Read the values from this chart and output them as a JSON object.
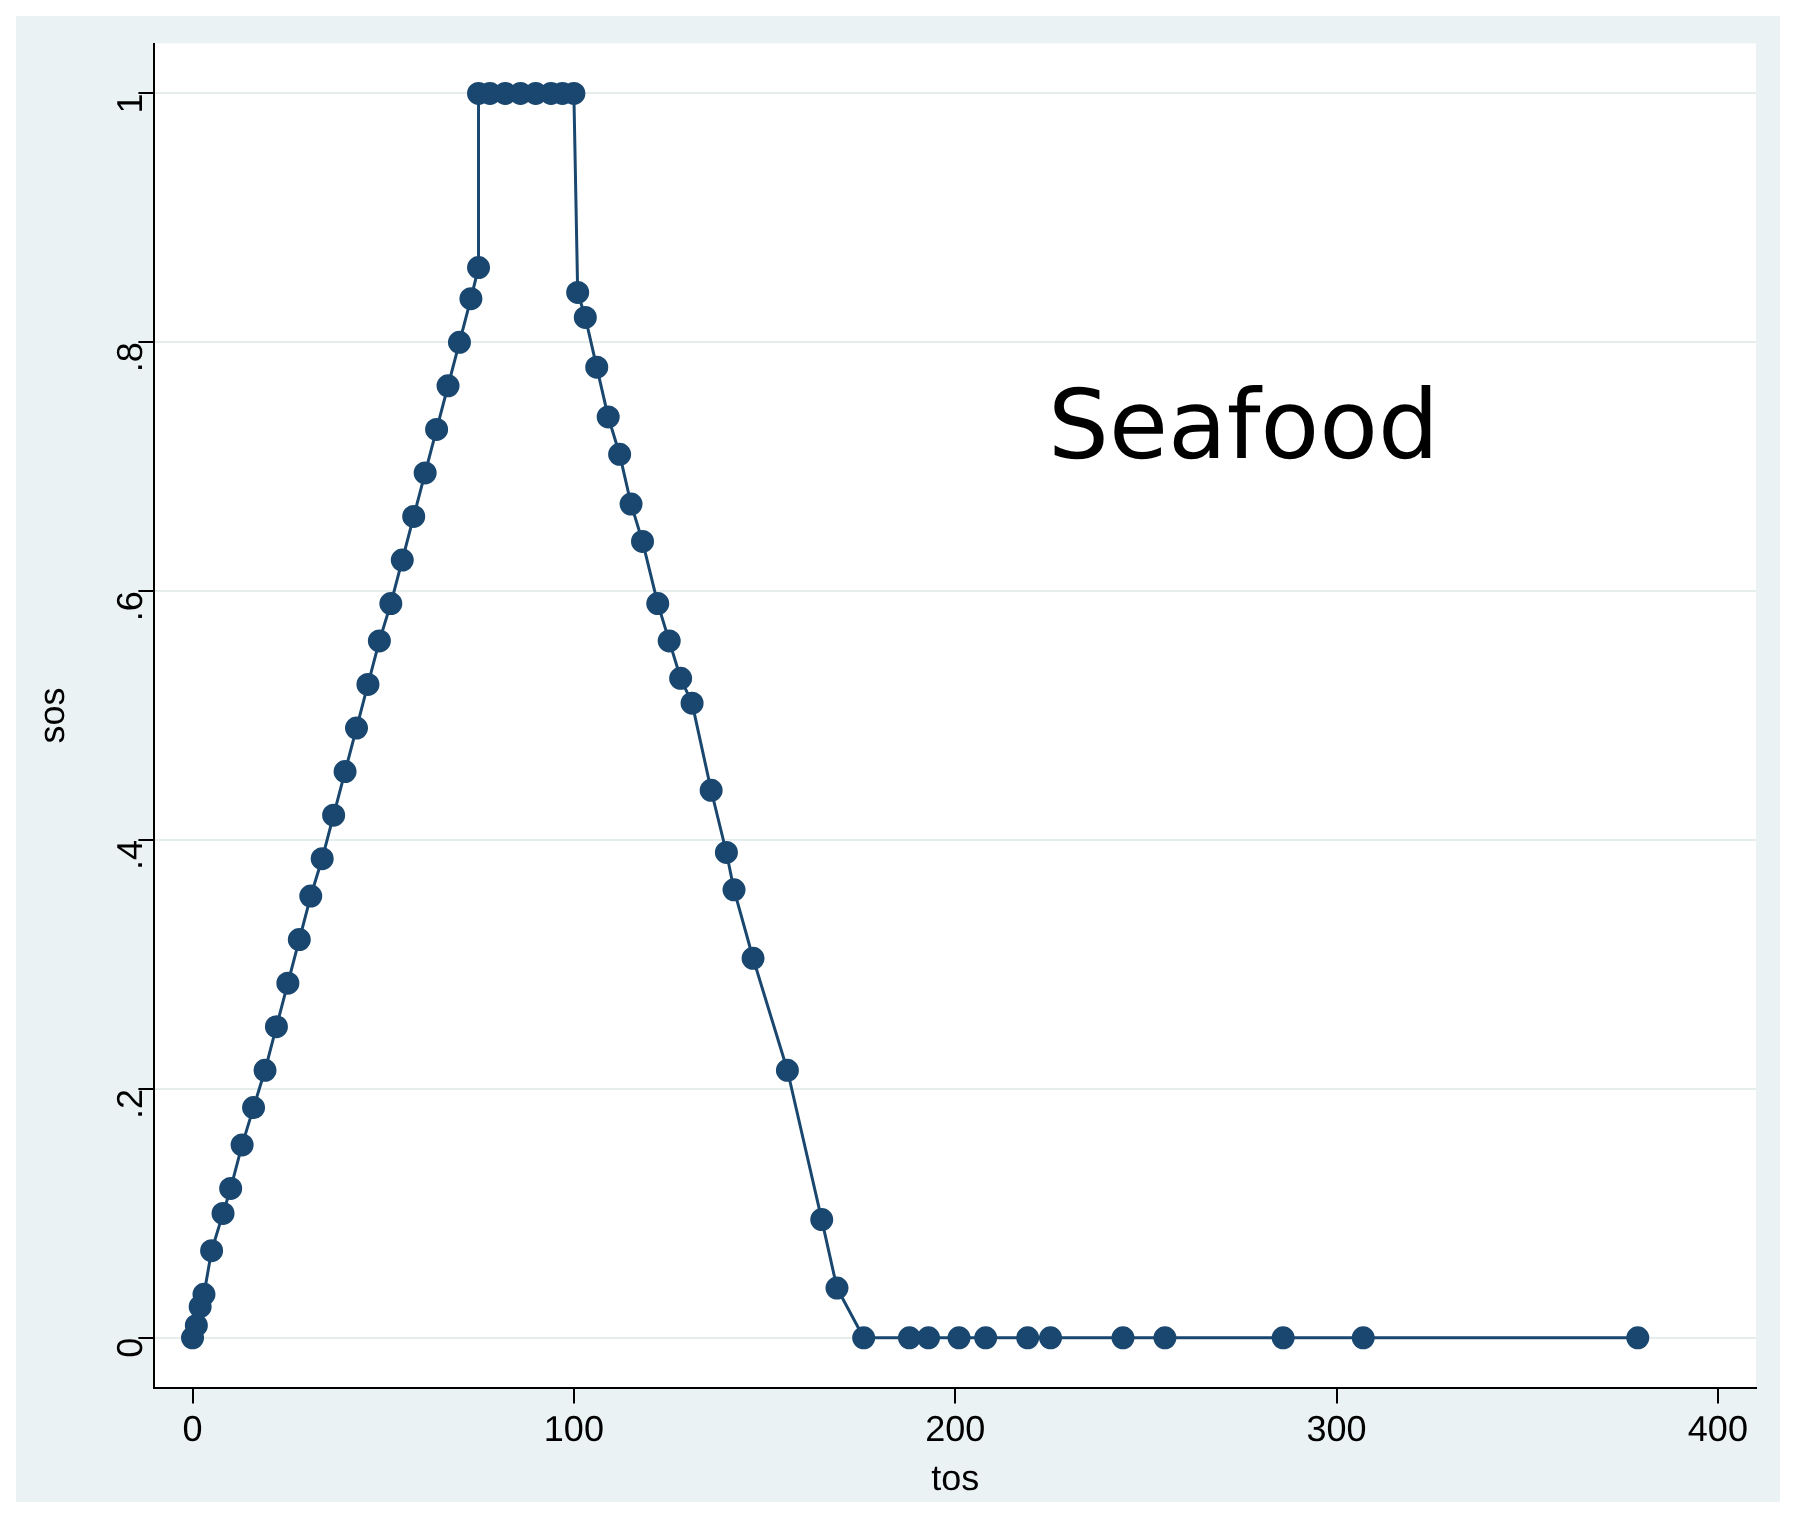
{
  "chart_data": {
    "type": "line",
    "xlabel": "tos",
    "ylabel": "sos",
    "annotations": [
      "Seafood"
    ],
    "x": [
      0,
      1,
      2,
      3,
      5,
      8,
      10,
      13,
      16,
      19,
      22,
      25,
      28,
      31,
      34,
      37,
      40,
      43,
      46,
      49,
      52,
      55,
      58,
      61,
      64,
      67,
      70,
      73,
      75,
      75,
      78,
      82,
      86,
      90,
      94,
      97,
      100,
      101,
      103,
      106,
      109,
      112,
      115,
      118,
      122,
      125,
      128,
      131,
      136,
      140,
      142,
      147,
      156,
      165,
      169,
      176,
      188,
      193,
      201,
      208,
      219,
      225,
      244,
      255,
      286,
      307,
      379
    ],
    "series": [
      {
        "color": "#1a476f",
        "values": [
          0,
          0.01,
          0.025,
          0.035,
          0.07,
          0.1,
          0.12,
          0.155,
          0.185,
          0.215,
          0.25,
          0.285,
          0.32,
          0.355,
          0.385,
          0.42,
          0.455,
          0.49,
          0.525,
          0.56,
          0.59,
          0.625,
          0.66,
          0.695,
          0.73,
          0.765,
          0.8,
          0.835,
          0.86,
          1,
          1,
          1,
          1,
          1,
          1,
          1,
          1,
          0.84,
          0.82,
          0.78,
          0.74,
          0.71,
          0.67,
          0.64,
          0.59,
          0.56,
          0.53,
          0.51,
          0.44,
          0.39,
          0.36,
          0.305,
          0.215,
          0.095,
          0.04,
          0,
          0,
          0,
          0,
          0,
          0,
          0,
          0,
          0,
          0,
          0,
          0
        ]
      }
    ],
    "xlim": [
      -10,
      410
    ],
    "xticks": [
      0,
      100,
      200,
      300,
      400
    ],
    "ylim": [
      -0.04,
      1.04
    ],
    "yticks": [
      0,
      {
        "value": 0.2,
        "label": ".2"
      },
      {
        "value": 0.4,
        "label": ".4"
      },
      {
        "value": 0.6,
        "label": ".6"
      },
      {
        "value": 0.8,
        "label": ".8"
      },
      1
    ],
    "grid": "y",
    "marker": "circle",
    "line_style": "solid",
    "legend": false
  }
}
